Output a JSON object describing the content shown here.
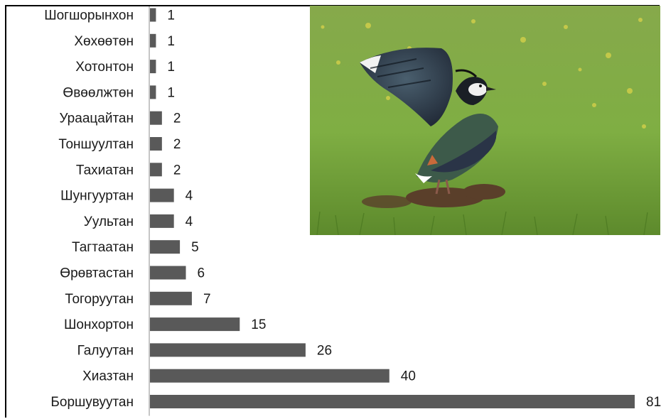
{
  "chart_data": {
    "type": "bar",
    "orientation": "horizontal",
    "categories": [
      "Шогшорынхон",
      "Хөхөөтөн",
      "Хотонтон",
      "Өвөөлжтөн",
      "Ураацайтан",
      "Тоншуултан",
      "Тахиатан",
      "Шунгууртан",
      "Уультан",
      "Тагтаатан",
      "Өрөвтастан",
      "Тогоруутан",
      "Шонхортон",
      "Галуутан",
      "Хиазтан",
      "Боршувуутан"
    ],
    "values": [
      1,
      1,
      1,
      1,
      2,
      2,
      2,
      4,
      4,
      5,
      6,
      7,
      15,
      26,
      40,
      81
    ],
    "bar_color": "#595959",
    "axis_color": "#8c8c8c",
    "grid": false,
    "xlim": [
      0,
      81
    ]
  },
  "photo": {
    "subject": "lapwing-bird",
    "colors": {
      "grass_light": "#8fb84e",
      "grass_dark": "#5e8a2c",
      "soil": "#5a3f2a",
      "bird_dark": "#2a3447",
      "bird_green": "#3d5a4a"
    }
  }
}
